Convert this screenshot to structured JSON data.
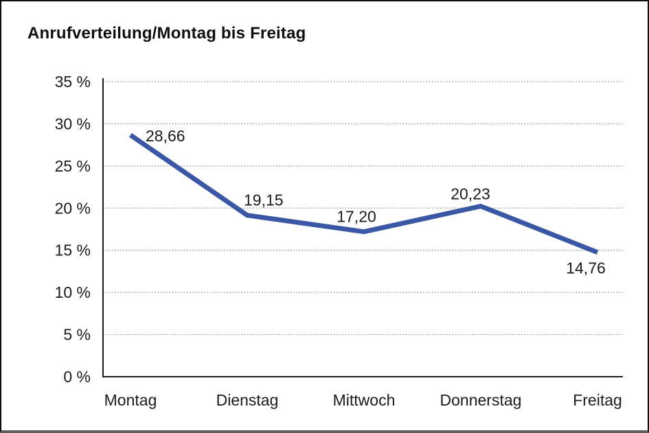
{
  "window": {
    "background_color": "#ffffff",
    "border_color": "#0d0d0d"
  },
  "chart_data": {
    "type": "line",
    "title": "Anrufverteilung/Montag bis Freitag",
    "categories": [
      "Montag",
      "Dienstag",
      "Mittwoch",
      "Donnerstag",
      "Freitag"
    ],
    "series": [
      {
        "name": "Anrufverteilung",
        "values": [
          28.66,
          19.15,
          17.2,
          20.23,
          14.76
        ],
        "value_labels": [
          "28,66",
          "19,15",
          "17,20",
          "20,23",
          "14,76"
        ],
        "color": "#3A57A6"
      }
    ],
    "xlabel": "",
    "ylabel": "",
    "ylim": [
      0,
      35
    ],
    "ytick_step": 5,
    "ytick_labels": [
      "0 %",
      "5 %",
      "10 %",
      "15 %",
      "20 %",
      "25 %",
      "30 %",
      "35 %"
    ],
    "grid": "horizontal-dotted",
    "legend": "none",
    "axis_color": "#1a1a1a",
    "grid_color": "#7d7d7d",
    "text_color": "#1a1a1a"
  }
}
